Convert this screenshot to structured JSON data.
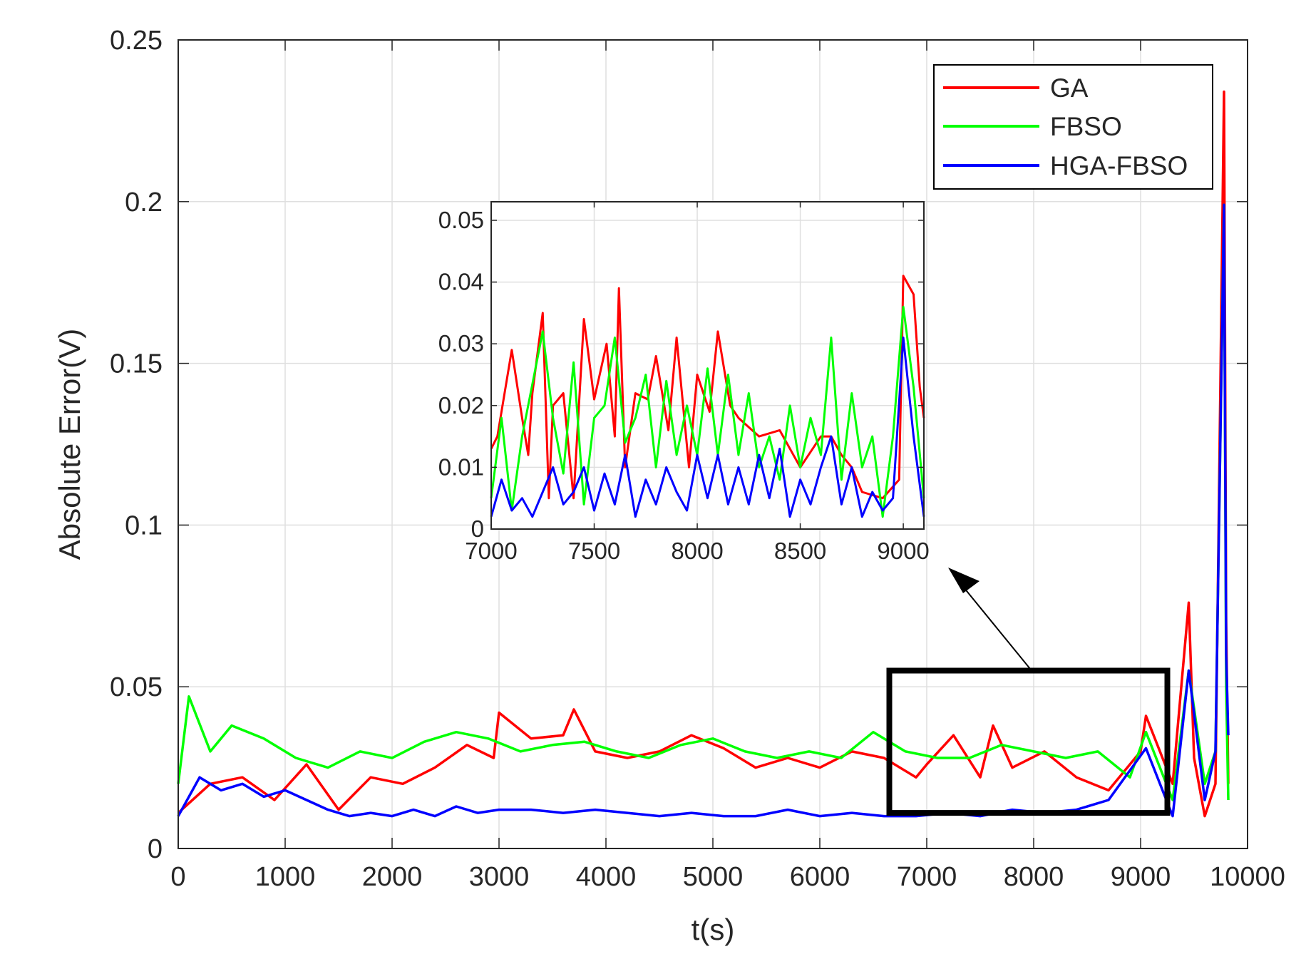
{
  "chart_data": [
    {
      "id": "main",
      "type": "line",
      "title": "",
      "xlabel": "t(s)",
      "ylabel": "Absolute Error(V)",
      "xlim": [
        0,
        10000
      ],
      "ylim": [
        0,
        0.25
      ],
      "xticks": [
        0,
        1000,
        2000,
        3000,
        4000,
        5000,
        6000,
        7000,
        8000,
        9000,
        10000
      ],
      "xtick_labels": [
        "0",
        "1000",
        "2000",
        "3000",
        "4000",
        "5000",
        "6000",
        "7000",
        "8000",
        "9000",
        "10000"
      ],
      "yticks": [
        0,
        0.05,
        0.1,
        0.15,
        0.2,
        0.25
      ],
      "ytick_labels": [
        "0",
        "0.05",
        "0.1",
        "0.15",
        "0.2",
        "0.25"
      ],
      "grid": true,
      "legend_position": "top-right",
      "series": [
        {
          "name": "GA",
          "color": "#ff0000",
          "x": [
            0,
            300,
            600,
            900,
            1200,
            1500,
            1800,
            2100,
            2400,
            2700,
            2950,
            3000,
            3300,
            3600,
            3700,
            3900,
            4200,
            4500,
            4800,
            5100,
            5400,
            5700,
            6000,
            6300,
            6600,
            6900,
            7000,
            7250,
            7500,
            7620,
            7800,
            8100,
            8400,
            8700,
            9000,
            9050,
            9300,
            9450,
            9500,
            9600,
            9700,
            9780,
            9800,
            9820
          ],
          "values": [
            0.011,
            0.02,
            0.022,
            0.015,
            0.026,
            0.012,
            0.022,
            0.02,
            0.025,
            0.032,
            0.028,
            0.042,
            0.034,
            0.035,
            0.043,
            0.03,
            0.028,
            0.03,
            0.035,
            0.031,
            0.025,
            0.028,
            0.025,
            0.03,
            0.028,
            0.022,
            0.026,
            0.035,
            0.022,
            0.038,
            0.025,
            0.03,
            0.022,
            0.018,
            0.03,
            0.041,
            0.02,
            0.076,
            0.028,
            0.01,
            0.02,
            0.234,
            0.07,
            0.02
          ]
        },
        {
          "name": "FBSO",
          "color": "#00ff00",
          "x": [
            0,
            100,
            300,
            500,
            800,
            1100,
            1400,
            1700,
            2000,
            2300,
            2600,
            2900,
            3200,
            3500,
            3800,
            4100,
            4400,
            4700,
            5000,
            5300,
            5600,
            5900,
            6200,
            6500,
            6800,
            7100,
            7400,
            7700,
            8000,
            8300,
            8600,
            8900,
            9050,
            9300,
            9450,
            9600,
            9700,
            9780,
            9800,
            9820
          ],
          "values": [
            0.02,
            0.047,
            0.03,
            0.038,
            0.034,
            0.028,
            0.025,
            0.03,
            0.028,
            0.033,
            0.036,
            0.034,
            0.03,
            0.032,
            0.033,
            0.03,
            0.028,
            0.032,
            0.034,
            0.03,
            0.028,
            0.03,
            0.028,
            0.036,
            0.03,
            0.028,
            0.028,
            0.032,
            0.03,
            0.028,
            0.03,
            0.022,
            0.036,
            0.015,
            0.055,
            0.02,
            0.03,
            0.199,
            0.05,
            0.015
          ]
        },
        {
          "name": "HGA-FBSO",
          "color": "#0000ff",
          "x": [
            0,
            200,
            400,
            600,
            800,
            1000,
            1200,
            1400,
            1600,
            1800,
            2000,
            2200,
            2400,
            2600,
            2800,
            3000,
            3300,
            3600,
            3900,
            4200,
            4500,
            4800,
            5100,
            5400,
            5700,
            6000,
            6300,
            6600,
            6900,
            7200,
            7500,
            7800,
            8100,
            8400,
            8700,
            9050,
            9300,
            9450,
            9600,
            9700,
            9780,
            9800,
            9820
          ],
          "values": [
            0.01,
            0.022,
            0.018,
            0.02,
            0.016,
            0.018,
            0.015,
            0.012,
            0.01,
            0.011,
            0.01,
            0.012,
            0.01,
            0.013,
            0.011,
            0.012,
            0.012,
            0.011,
            0.012,
            0.011,
            0.01,
            0.011,
            0.01,
            0.01,
            0.012,
            0.01,
            0.011,
            0.01,
            0.01,
            0.011,
            0.01,
            0.012,
            0.011,
            0.012,
            0.015,
            0.031,
            0.01,
            0.055,
            0.015,
            0.03,
            0.199,
            0.06,
            0.035
          ]
        }
      ],
      "zoom_box": {
        "x_range": [
          6650,
          9250
        ],
        "y_range": [
          0.011,
          0.055
        ]
      }
    },
    {
      "id": "inset",
      "type": "line",
      "title": "",
      "xlabel": "",
      "ylabel": "",
      "xlim": [
        7000,
        9100
      ],
      "ylim": [
        0,
        0.053
      ],
      "xticks": [
        7000,
        7500,
        8000,
        8500,
        9000
      ],
      "xtick_labels": [
        "7000",
        "7500",
        "8000",
        "8500",
        "9000"
      ],
      "yticks": [
        0,
        0.01,
        0.02,
        0.03,
        0.04,
        0.05
      ],
      "ytick_labels": [
        "0",
        "0.01",
        "0.02",
        "0.03",
        "0.04",
        "0.05"
      ],
      "grid": true,
      "series": [
        {
          "name": "GA",
          "color": "#ff0000",
          "x": [
            7000,
            7030,
            7100,
            7150,
            7180,
            7200,
            7250,
            7280,
            7300,
            7350,
            7400,
            7450,
            7500,
            7560,
            7600,
            7620,
            7650,
            7700,
            7760,
            7800,
            7860,
            7900,
            7960,
            8000,
            8060,
            8100,
            8160,
            8200,
            8300,
            8400,
            8500,
            8600,
            8650,
            8700,
            8750,
            8800,
            8900,
            8980,
            9000,
            9050,
            9080,
            9100
          ],
          "values": [
            0.013,
            0.015,
            0.029,
            0.018,
            0.012,
            0.022,
            0.035,
            0.005,
            0.02,
            0.022,
            0.005,
            0.034,
            0.021,
            0.03,
            0.015,
            0.039,
            0.01,
            0.022,
            0.021,
            0.028,
            0.016,
            0.031,
            0.01,
            0.025,
            0.019,
            0.032,
            0.02,
            0.018,
            0.015,
            0.016,
            0.01,
            0.015,
            0.015,
            0.012,
            0.01,
            0.006,
            0.005,
            0.008,
            0.041,
            0.038,
            0.023,
            0.018
          ]
        },
        {
          "name": "FBSO",
          "color": "#00ff00",
          "x": [
            7000,
            7050,
            7100,
            7150,
            7250,
            7300,
            7350,
            7400,
            7450,
            7500,
            7550,
            7600,
            7650,
            7700,
            7750,
            7800,
            7850,
            7900,
            7950,
            8000,
            8050,
            8100,
            8150,
            8200,
            8250,
            8300,
            8350,
            8400,
            8450,
            8500,
            8550,
            8600,
            8650,
            8700,
            8750,
            8800,
            8850,
            8900,
            8950,
            9000,
            9050,
            9100
          ],
          "values": [
            0.005,
            0.018,
            0.003,
            0.015,
            0.032,
            0.018,
            0.009,
            0.027,
            0.004,
            0.018,
            0.02,
            0.031,
            0.014,
            0.018,
            0.025,
            0.01,
            0.024,
            0.012,
            0.02,
            0.012,
            0.026,
            0.012,
            0.025,
            0.012,
            0.022,
            0.01,
            0.015,
            0.008,
            0.02,
            0.01,
            0.018,
            0.012,
            0.031,
            0.008,
            0.022,
            0.01,
            0.015,
            0.002,
            0.015,
            0.036,
            0.023,
            0.005
          ]
        },
        {
          "name": "HGA-FBSO",
          "color": "#0000ff",
          "x": [
            7000,
            7050,
            7100,
            7150,
            7200,
            7250,
            7300,
            7350,
            7400,
            7450,
            7500,
            7550,
            7600,
            7650,
            7700,
            7750,
            7800,
            7850,
            7900,
            7950,
            8000,
            8050,
            8100,
            8150,
            8200,
            8250,
            8300,
            8350,
            8400,
            8450,
            8500,
            8550,
            8600,
            8650,
            8700,
            8750,
            8800,
            8850,
            8900,
            8950,
            9000,
            9050,
            9100
          ],
          "values": [
            0.002,
            0.008,
            0.003,
            0.005,
            0.002,
            0.006,
            0.01,
            0.004,
            0.006,
            0.01,
            0.003,
            0.009,
            0.004,
            0.012,
            0.002,
            0.008,
            0.004,
            0.01,
            0.006,
            0.003,
            0.012,
            0.005,
            0.012,
            0.004,
            0.01,
            0.004,
            0.012,
            0.005,
            0.013,
            0.002,
            0.008,
            0.004,
            0.01,
            0.015,
            0.004,
            0.01,
            0.002,
            0.006,
            0.003,
            0.005,
            0.031,
            0.015,
            0.002
          ]
        }
      ]
    }
  ]
}
